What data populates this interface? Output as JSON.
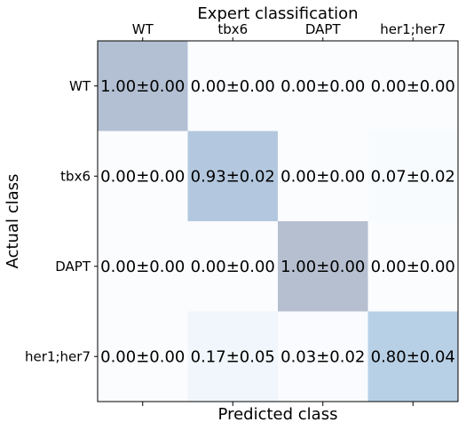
{
  "chart_data": {
    "type": "heatmap",
    "title": "Expert classification",
    "xlabel": "Predicted class",
    "ylabel": "Actual class",
    "x_categories": [
      "WT",
      "tbx6",
      "DAPT",
      "her1;her7"
    ],
    "y_categories": [
      "WT",
      "tbx6",
      "DAPT",
      "her1;her7"
    ],
    "values": [
      [
        1.0,
        0.0,
        0.0,
        0.0
      ],
      [
        0.0,
        0.93,
        0.0,
        0.07
      ],
      [
        0.0,
        0.0,
        1.0,
        0.0
      ],
      [
        0.0,
        0.17,
        0.03,
        0.8
      ]
    ],
    "labels": [
      [
        "1.00±0.00",
        "0.00±0.00",
        "0.00±0.00",
        "0.00±0.00"
      ],
      [
        "0.00±0.00",
        "0.93±0.02",
        "0.00±0.00",
        "0.07±0.02"
      ],
      [
        "0.00±0.00",
        "0.00±0.00",
        "1.00±0.00",
        "0.00±0.00"
      ],
      [
        "0.00±0.00",
        "0.17±0.05",
        "0.03±0.02",
        "0.80±0.04"
      ]
    ],
    "cell_colors": [
      [
        "#b3c0d3",
        "#fbfcfe",
        "#fbfcfe",
        "#fbfcfe"
      ],
      [
        "#fbfcfe",
        "#b3c8de",
        "#fbfcfe",
        "#f8fbfe"
      ],
      [
        "#fbfcfe",
        "#fbfcfe",
        "#b5bfcf",
        "#fbfcfe"
      ],
      [
        "#fbfcfe",
        "#f0f6fb",
        "#f9fbfe",
        "#b8d0e6"
      ]
    ],
    "x_ticks_position": "top"
  }
}
